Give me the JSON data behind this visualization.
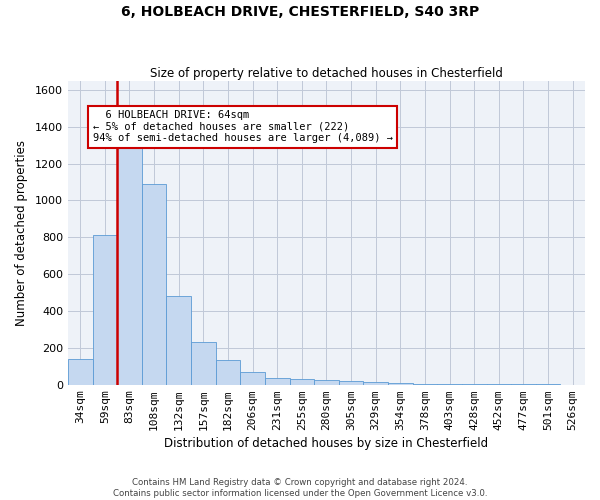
{
  "title1": "6, HOLBEACH DRIVE, CHESTERFIELD, S40 3RP",
  "title2": "Size of property relative to detached houses in Chesterfield",
  "xlabel": "Distribution of detached houses by size in Chesterfield",
  "ylabel": "Number of detached properties",
  "footer1": "Contains HM Land Registry data © Crown copyright and database right 2024.",
  "footer2": "Contains public sector information licensed under the Open Government Licence v3.0.",
  "annotation_line1": "  6 HOLBEACH DRIVE: 64sqm",
  "annotation_line2": "← 5% of detached houses are smaller (222)",
  "annotation_line3": "94% of semi-detached houses are larger (4,089) →",
  "bar_color": "#c5d8f0",
  "bar_edge_color": "#5b9bd5",
  "vline_color": "#cc0000",
  "annotation_box_color": "#cc0000",
  "categories": [
    "34sqm",
    "59sqm",
    "83sqm",
    "108sqm",
    "132sqm",
    "157sqm",
    "182sqm",
    "206sqm",
    "231sqm",
    "255sqm",
    "280sqm",
    "305sqm",
    "329sqm",
    "354sqm",
    "378sqm",
    "403sqm",
    "428sqm",
    "452sqm",
    "477sqm",
    "501sqm",
    "526sqm"
  ],
  "values": [
    140,
    810,
    1300,
    1090,
    480,
    230,
    135,
    70,
    38,
    30,
    25,
    20,
    17,
    10,
    5,
    4,
    3,
    2,
    2,
    2,
    1
  ],
  "ylim": [
    0,
    1650
  ],
  "yticks": [
    0,
    200,
    400,
    600,
    800,
    1000,
    1200,
    1400,
    1600
  ],
  "grid_color": "#c0c8d8",
  "bg_color": "#eef2f8",
  "vline_x": 1.5
}
